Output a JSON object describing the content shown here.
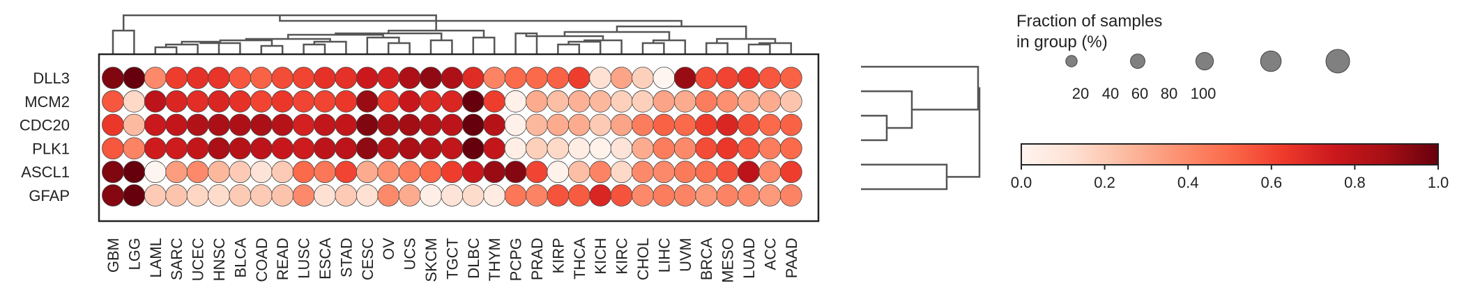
{
  "chart_data": {
    "type": "dotplot",
    "genes": [
      "DLL3",
      "MCM2",
      "CDC20",
      "PLK1",
      "ASCL1",
      "GFAP"
    ],
    "cancer_types": [
      "GBM",
      "LGG",
      "LAML",
      "SARC",
      "UCEC",
      "HNSC",
      "BLCA",
      "COAD",
      "READ",
      "LUSC",
      "ESCA",
      "STAD",
      "CESC",
      "OV",
      "UCS",
      "SKCM",
      "TGCT",
      "DLBC",
      "THYM",
      "PCPG",
      "PRAD",
      "KIRP",
      "THCA",
      "KICH",
      "KIRC",
      "CHOL",
      "LIHC",
      "UVM",
      "BRCA",
      "MESO",
      "LUAD",
      "ACC",
      "PAAD"
    ],
    "expression": [
      [
        0.95,
        1.0,
        0.4,
        0.62,
        0.66,
        0.65,
        0.55,
        0.52,
        0.58,
        0.6,
        0.66,
        0.66,
        0.75,
        0.72,
        0.85,
        0.92,
        0.85,
        0.68,
        0.42,
        0.5,
        0.5,
        0.52,
        0.62,
        0.12,
        0.32,
        0.18,
        0.0,
        0.9,
        0.58,
        0.6,
        0.64,
        0.55,
        0.52
      ],
      [
        0.55,
        0.15,
        0.8,
        0.7,
        0.67,
        0.7,
        0.66,
        0.6,
        0.64,
        0.6,
        0.6,
        0.64,
        0.9,
        0.64,
        0.76,
        0.68,
        0.7,
        1.0,
        0.62,
        0.03,
        0.3,
        0.24,
        0.28,
        0.26,
        0.18,
        0.18,
        0.32,
        0.3,
        0.44,
        0.38,
        0.3,
        0.3,
        0.22
      ],
      [
        0.64,
        0.25,
        0.75,
        0.78,
        0.84,
        0.86,
        0.85,
        0.86,
        0.82,
        0.72,
        0.78,
        0.78,
        0.95,
        0.86,
        0.88,
        0.82,
        0.8,
        1.0,
        0.82,
        0.03,
        0.26,
        0.3,
        0.3,
        0.2,
        0.32,
        0.44,
        0.52,
        0.5,
        0.62,
        0.7,
        0.58,
        0.5,
        0.52
      ],
      [
        0.55,
        0.42,
        0.74,
        0.74,
        0.78,
        0.86,
        0.82,
        0.8,
        0.76,
        0.74,
        0.8,
        0.8,
        0.92,
        0.82,
        0.86,
        0.82,
        0.78,
        1.0,
        0.78,
        0.04,
        0.18,
        0.15,
        0.05,
        0.02,
        0.1,
        0.3,
        0.44,
        0.4,
        0.58,
        0.64,
        0.55,
        0.44,
        0.5
      ],
      [
        0.95,
        1.0,
        0.0,
        0.34,
        0.4,
        0.26,
        0.2,
        0.1,
        0.2,
        0.5,
        0.46,
        0.6,
        0.3,
        0.38,
        0.44,
        0.5,
        0.62,
        0.75,
        0.9,
        0.94,
        0.6,
        0.02,
        0.24,
        0.42,
        0.15,
        0.4,
        0.4,
        0.45,
        0.48,
        0.56,
        0.8,
        0.4,
        0.62
      ],
      [
        0.94,
        1.0,
        0.2,
        0.22,
        0.16,
        0.14,
        0.2,
        0.2,
        0.22,
        0.4,
        0.12,
        0.2,
        0.12,
        0.4,
        0.3,
        0.04,
        0.1,
        0.14,
        0.06,
        0.46,
        0.42,
        0.56,
        0.54,
        0.7,
        0.56,
        0.4,
        0.44,
        0.42,
        0.36,
        0.42,
        0.4,
        0.35,
        0.42
      ]
    ],
    "size_legend": {
      "title_line1": "Fraction of samples",
      "title_line2": "in group (%)",
      "labels": [
        "20",
        "40",
        "60",
        "80",
        "100"
      ],
      "values": [
        20,
        40,
        60,
        80,
        100
      ]
    },
    "colorbar": {
      "ticks": [
        "0.0",
        "0.2",
        "0.4",
        "0.6",
        "0.8",
        "1.0"
      ],
      "range": [
        0,
        1
      ],
      "colormap": "Reds",
      "stops": [
        "#fff5f0",
        "#fee0d2",
        "#fcbba1",
        "#fc9272",
        "#fb6a4a",
        "#ef3b2c",
        "#cb181d",
        "#a50f15",
        "#67000d"
      ]
    },
    "line_color": "#555555"
  }
}
